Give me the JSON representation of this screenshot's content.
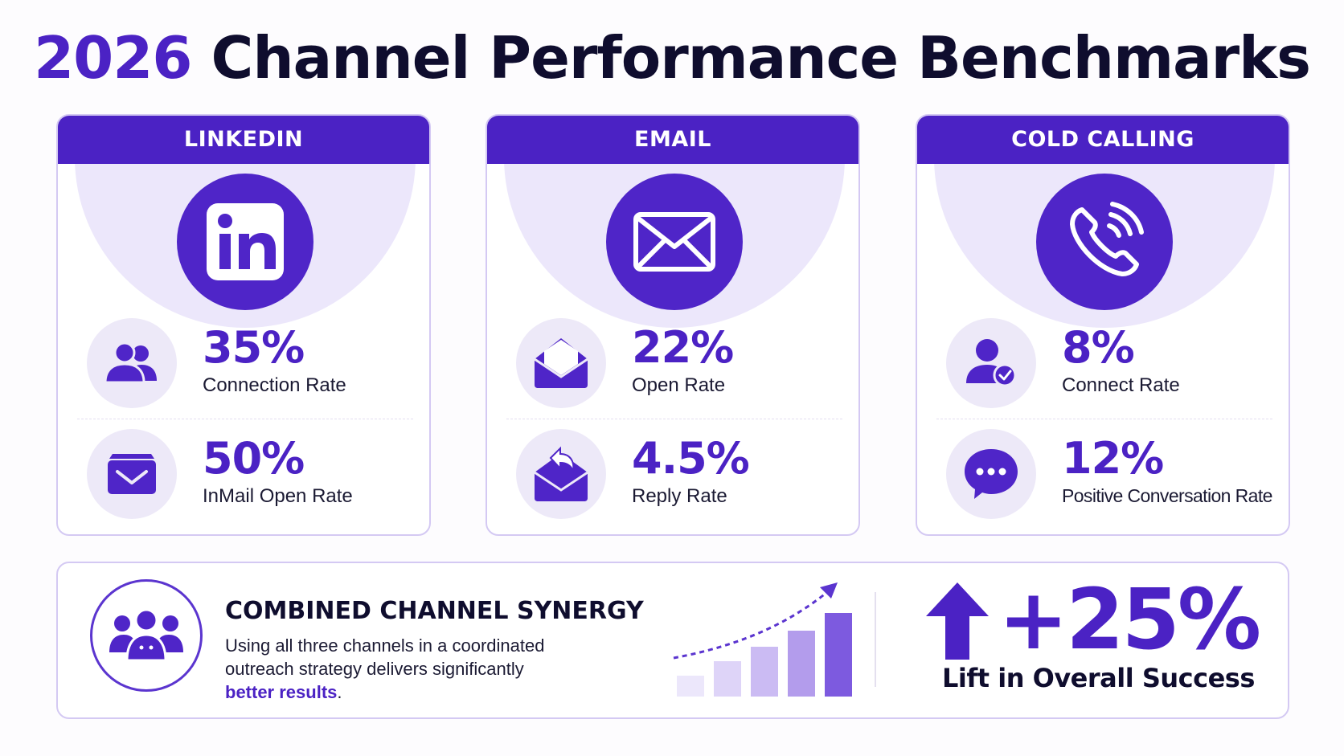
{
  "title": {
    "year": "2026",
    "rest": "Channel Performance Benchmarks"
  },
  "channels": [
    {
      "name": "LINKEDIN",
      "icon": "linkedin-icon",
      "metrics": [
        {
          "value": "35%",
          "label": "Connection Rate",
          "icon": "users-icon"
        },
        {
          "value": "50%",
          "label": "InMail Open Rate",
          "icon": "inmail-icon"
        }
      ]
    },
    {
      "name": "EMAIL",
      "icon": "envelope-icon",
      "metrics": [
        {
          "value": "22%",
          "label": "Open Rate",
          "icon": "open-envelope-icon"
        },
        {
          "value": "4.5%",
          "label": "Reply Rate",
          "icon": "reply-envelope-icon"
        }
      ]
    },
    {
      "name": "COLD CALLING",
      "icon": "phone-icon",
      "metrics": [
        {
          "value": "8%",
          "label": "Connect Rate",
          "icon": "user-check-icon"
        },
        {
          "value": "12%",
          "label": "Positive Conversation Rate",
          "icon": "chat-bubble-icon"
        }
      ]
    }
  ],
  "synergy": {
    "title": "COMBINED CHANNEL SYNERGY",
    "desc_line1": "Using all three channels in a coordinated",
    "desc_line2": "outreach strategy delivers significantly",
    "desc_highlight": "better results",
    "desc_end": ".",
    "icon": "team-icon",
    "growth_icon": "growth-bars-icon"
  },
  "lift": {
    "value": "+25%",
    "label": "Lift in Overall Success",
    "icon": "up-arrow-icon"
  },
  "colors": {
    "accent": "#4b22c4",
    "halo": "#ece7fb",
    "soft": "#ede9f8",
    "text": "#0f0d2e"
  }
}
